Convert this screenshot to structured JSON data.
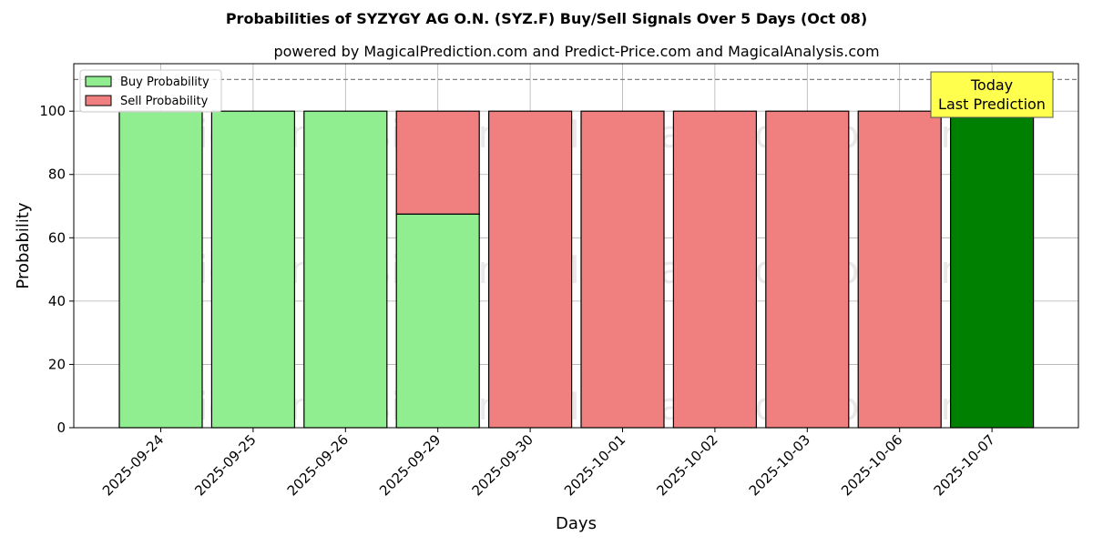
{
  "chart_data": {
    "type": "bar",
    "title": "Probabilities of SYZYGY AG O.N. (SYZ.F) Buy/Sell Signals Over 5 Days (Oct 08)",
    "subtitle": "powered by MagicalPrediction.com and Predict-Price.com and MagicalAnalysis.com",
    "xlabel": "Days",
    "ylabel": "Probability",
    "ylim": [
      0,
      115
    ],
    "yticks": [
      0,
      20,
      40,
      60,
      80,
      100
    ],
    "grid": true,
    "stacked": true,
    "legend_position": "top-left",
    "reference_line": 110,
    "categories": [
      "2025-09-24",
      "2025-09-25",
      "2025-09-26",
      "2025-09-29",
      "2025-09-30",
      "2025-10-01",
      "2025-10-02",
      "2025-10-03",
      "2025-10-06",
      "2025-10-07"
    ],
    "series": [
      {
        "name": "Buy Probability",
        "color": "#90ee90",
        "values": [
          100,
          100,
          100,
          67.5,
          0,
          0,
          0,
          0,
          0,
          100
        ]
      },
      {
        "name": "Sell Probability",
        "color": "#f08080",
        "values": [
          0,
          0,
          0,
          32.5,
          100,
          100,
          100,
          100,
          100,
          0
        ]
      }
    ],
    "highlight": {
      "index": 9,
      "color": "#008000"
    },
    "annotation": {
      "line1": "Today",
      "line2": "Last Prediction",
      "color": "#ffff4d"
    },
    "watermarks": [
      "MagicalAnalysis.com",
      "MagicalPrediction.com"
    ]
  }
}
